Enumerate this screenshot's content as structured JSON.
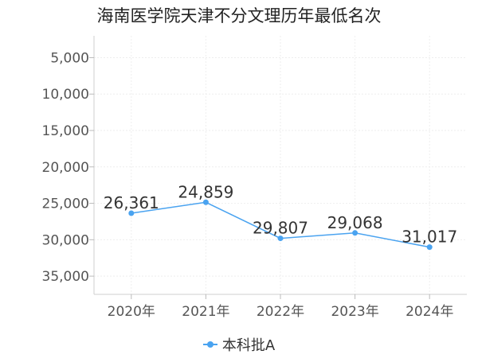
{
  "chart_data": {
    "type": "line",
    "title": "海南医学院天津不分文理历年最低名次",
    "categories": [
      "2020年",
      "2021年",
      "2022年",
      "2023年",
      "2024年"
    ],
    "series": [
      {
        "name": "本科批A",
        "values": [
          26361,
          24859,
          29807,
          29068,
          31017
        ],
        "labels": [
          "26,361",
          "24,859",
          "29,807",
          "29,068",
          "31,017"
        ],
        "color": "#4aa3f0"
      }
    ],
    "y_ticks": [
      5000,
      10000,
      15000,
      20000,
      25000,
      30000,
      35000
    ],
    "y_tick_labels": [
      "5,000",
      "10,000",
      "15,000",
      "20,000",
      "25,000",
      "30,000",
      "35,000"
    ],
    "ylim": [
      2000,
      37500
    ],
    "y_inverted": true,
    "grid": true,
    "legend_position": "bottom"
  }
}
